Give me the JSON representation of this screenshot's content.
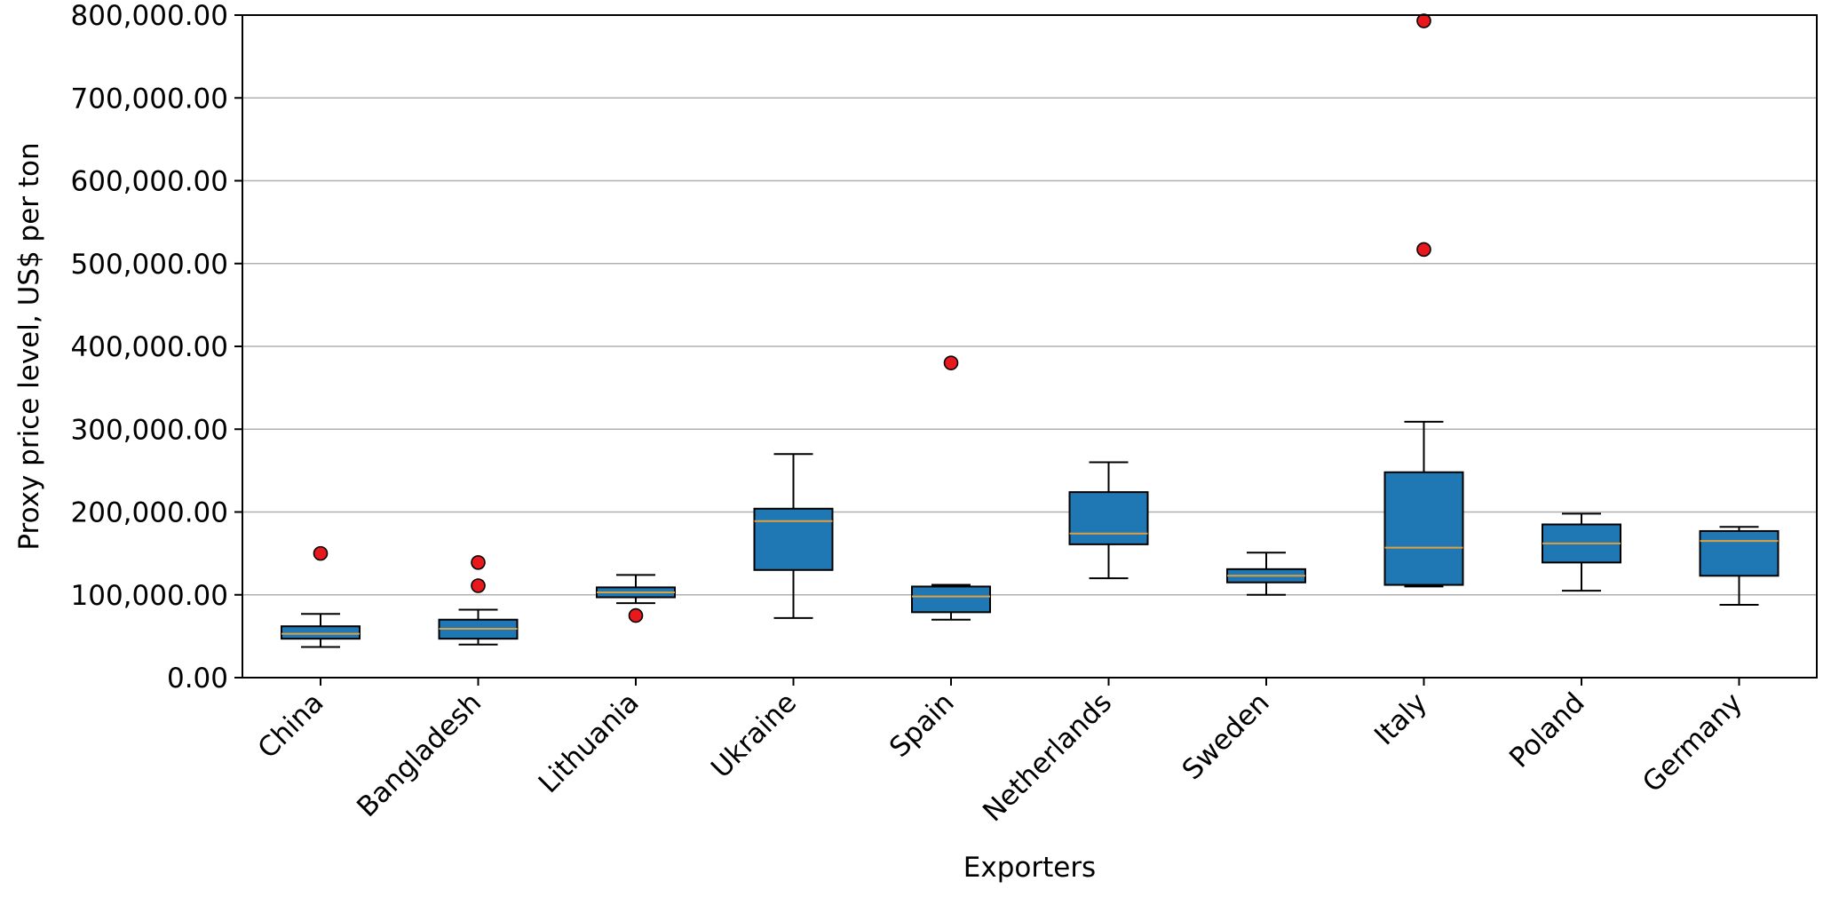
{
  "chart_data": {
    "type": "box",
    "title": "",
    "xlabel": "Exporters",
    "ylabel": "Proxy price level, US$ per ton",
    "ylim": [
      0,
      800000
    ],
    "yticks": [
      0,
      100000,
      200000,
      300000,
      400000,
      500000,
      600000,
      700000,
      800000
    ],
    "ytick_labels": [
      "0.00",
      "100,000.00",
      "200,000.00",
      "300,000.00",
      "400,000.00",
      "500,000.00",
      "600,000.00",
      "700,000.00",
      "800,000.00"
    ],
    "grid": "horizontal",
    "categories": [
      "China",
      "Bangladesh",
      "Lithuania",
      "Ukraine",
      "Spain",
      "Netherlands",
      "Sweden",
      "Italy",
      "Poland",
      "Germany"
    ],
    "boxes": [
      {
        "category": "China",
        "whisker_low": 37000,
        "q1": 47000,
        "median": 53000,
        "q3": 62000,
        "whisker_high": 77000,
        "outliers": [
          150000
        ]
      },
      {
        "category": "Bangladesh",
        "whisker_low": 40000,
        "q1": 47000,
        "median": 59000,
        "q3": 70000,
        "whisker_high": 82000,
        "outliers": [
          111000,
          139000
        ]
      },
      {
        "category": "Lithuania",
        "whisker_low": 90000,
        "q1": 97000,
        "median": 103000,
        "q3": 109000,
        "whisker_high": 124000,
        "outliers": [
          75000
        ]
      },
      {
        "category": "Ukraine",
        "whisker_low": 72000,
        "q1": 130000,
        "median": 189000,
        "q3": 204000,
        "whisker_high": 270000,
        "outliers": []
      },
      {
        "category": "Spain",
        "whisker_low": 70000,
        "q1": 79000,
        "median": 98000,
        "q3": 110000,
        "whisker_high": 112000,
        "outliers": [
          380000
        ]
      },
      {
        "category": "Netherlands",
        "whisker_low": 120000,
        "q1": 161000,
        "median": 174000,
        "q3": 224000,
        "whisker_high": 260000,
        "outliers": []
      },
      {
        "category": "Sweden",
        "whisker_low": 100000,
        "q1": 115000,
        "median": 123000,
        "q3": 131000,
        "whisker_high": 151000,
        "outliers": []
      },
      {
        "category": "Italy",
        "whisker_low": 110000,
        "q1": 112000,
        "median": 157000,
        "q3": 248000,
        "whisker_high": 309000,
        "outliers": [
          517000,
          793000
        ]
      },
      {
        "category": "Poland",
        "whisker_low": 105000,
        "q1": 139000,
        "median": 162000,
        "q3": 185000,
        "whisker_high": 198000,
        "outliers": []
      },
      {
        "category": "Germany",
        "whisker_low": 88000,
        "q1": 123000,
        "median": 165000,
        "q3": 177000,
        "whisker_high": 182000,
        "outliers": []
      }
    ],
    "colors": {
      "box_fill": "#1f77b4",
      "median": "#e0a040",
      "outlier": "#e8191c",
      "grid": "#b0b0b0",
      "line": "#000000"
    }
  }
}
